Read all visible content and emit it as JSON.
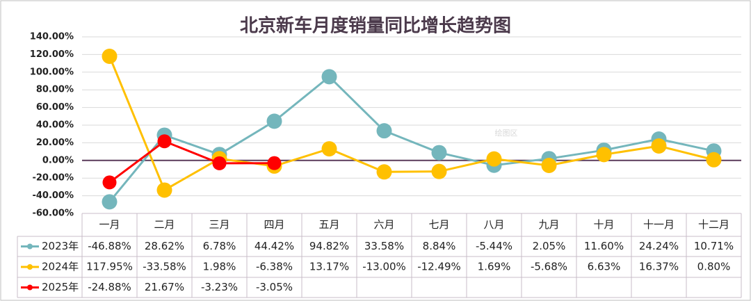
{
  "chart_data": {
    "type": "line",
    "title": "北京新车月度销量同比增长趋势图",
    "annotation": "绘图区",
    "categories": [
      "一月",
      "二月",
      "三月",
      "四月",
      "五月",
      "六月",
      "七月",
      "八月",
      "九月",
      "十月",
      "十一月",
      "十二月"
    ],
    "series": [
      {
        "name": "2023年",
        "color": "#74b6bc",
        "values": [
          -46.88,
          28.62,
          6.78,
          44.42,
          94.82,
          33.58,
          8.84,
          -5.44,
          2.05,
          11.6,
          24.24,
          10.71
        ],
        "value_labels": [
          "-46.88%",
          "28.62%",
          "6.78%",
          "44.42%",
          "94.82%",
          "33.58%",
          "8.84%",
          "-5.44%",
          "2.05%",
          "11.60%",
          "24.24%",
          "10.71%"
        ]
      },
      {
        "name": "2024年",
        "color": "#ffc000",
        "values": [
          117.95,
          -33.58,
          1.98,
          -6.38,
          13.17,
          -13.0,
          -12.49,
          1.69,
          -5.68,
          6.63,
          16.37,
          0.8
        ],
        "value_labels": [
          "117.95%",
          "-33.58%",
          "1.98%",
          "-6.38%",
          "13.17%",
          "-13.00%",
          "-12.49%",
          "1.69%",
          "-5.68%",
          "6.63%",
          "16.37%",
          "0.80%"
        ]
      },
      {
        "name": "2025年",
        "color": "#ff0000",
        "values": [
          -24.88,
          21.67,
          -3.23,
          -3.05,
          null,
          null,
          null,
          null,
          null,
          null,
          null,
          null
        ],
        "value_labels": [
          "-24.88%",
          "21.67%",
          "-3.23%",
          "-3.05%",
          null,
          null,
          null,
          null,
          null,
          null,
          null,
          null
        ]
      }
    ],
    "ylim": [
      -60,
      140
    ],
    "yticks": [
      {
        "value": -60,
        "label": "-60.00%"
      },
      {
        "value": -40,
        "label": "-40.00%"
      },
      {
        "value": -20,
        "label": "-20.00%"
      },
      {
        "value": 0,
        "label": "0.00%"
      },
      {
        "value": 20,
        "label": "20.00%"
      },
      {
        "value": 40,
        "label": "40.00%"
      },
      {
        "value": 60,
        "label": "60.00%"
      },
      {
        "value": 80,
        "label": "80.00%"
      },
      {
        "value": 100,
        "label": "100.00%"
      },
      {
        "value": 120,
        "label": "120.00%"
      },
      {
        "value": 140,
        "label": "140.00%"
      }
    ],
    "grid": true
  }
}
